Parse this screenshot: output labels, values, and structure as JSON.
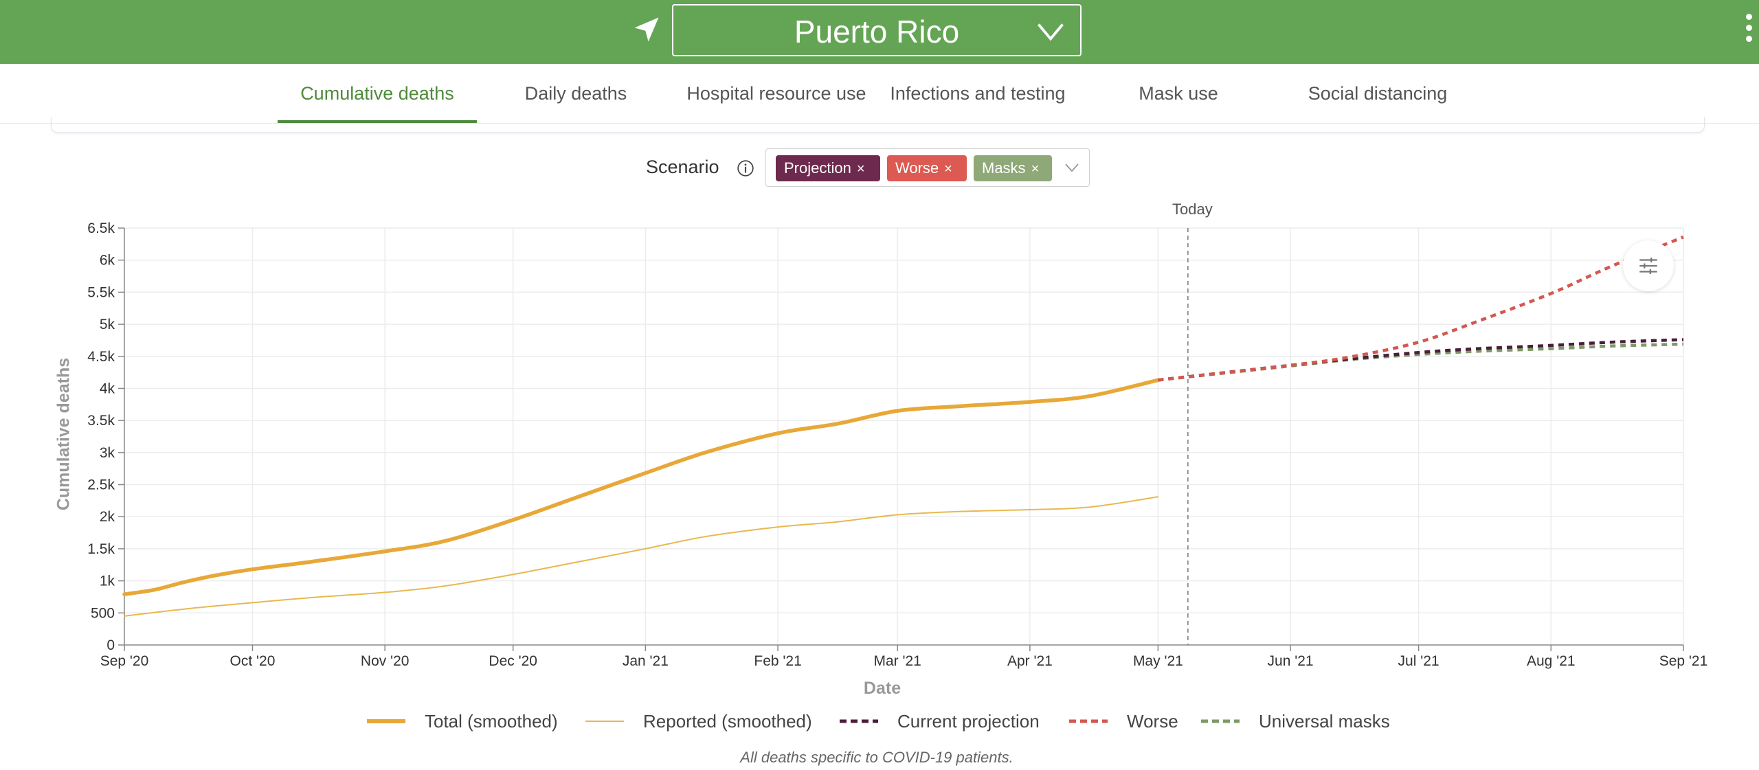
{
  "header": {
    "location_icon": "location-arrow-icon",
    "region": "Puerto Rico",
    "region_dropdown_icon": "chevron-down-icon",
    "menu_icon": "kebab-menu-icon",
    "colors": {
      "bar": "#64a555",
      "accent": "#4f8a3c"
    }
  },
  "tabs": [
    {
      "label": "Cumulative deaths",
      "active": true
    },
    {
      "label": "Daily deaths",
      "active": false
    },
    {
      "label": "Hospital resource use",
      "active": false
    },
    {
      "label": "Infections and testing",
      "active": false
    },
    {
      "label": "Mask use",
      "active": false
    },
    {
      "label": "Social distancing",
      "active": false
    }
  ],
  "scenario": {
    "label": "Scenario",
    "info_icon": "info-icon",
    "chips": [
      {
        "label": "Projection",
        "remove": "×",
        "color": "#6e2a4e"
      },
      {
        "label": "Worse",
        "remove": "×",
        "color": "#dc5a52"
      },
      {
        "label": "Masks",
        "remove": "×",
        "color": "#8fa877"
      }
    ],
    "dropdown_icon": "chevron-down-icon"
  },
  "chart_controls": {
    "filter_icon": "sliders-icon"
  },
  "chart_data": {
    "type": "line",
    "xlabel": "Date",
    "ylabel": "Cumulative deaths",
    "today_label": "Today",
    "today_date": "2021-05-08",
    "x_range": [
      "2020-09-01",
      "2021-09-01"
    ],
    "ylim": [
      0,
      6500
    ],
    "y_ticks": [
      {
        "value": 0,
        "label": "0"
      },
      {
        "value": 500,
        "label": "500"
      },
      {
        "value": 1000,
        "label": "1k"
      },
      {
        "value": 1500,
        "label": "1.5k"
      },
      {
        "value": 2000,
        "label": "2k"
      },
      {
        "value": 2500,
        "label": "2.5k"
      },
      {
        "value": 3000,
        "label": "3k"
      },
      {
        "value": 3500,
        "label": "3.5k"
      },
      {
        "value": 4000,
        "label": "4k"
      },
      {
        "value": 4500,
        "label": "4.5k"
      },
      {
        "value": 5000,
        "label": "5k"
      },
      {
        "value": 5500,
        "label": "5.5k"
      },
      {
        "value": 6000,
        "label": "6k"
      },
      {
        "value": 6500,
        "label": "6.5k"
      }
    ],
    "x_ticks": [
      {
        "date": "2020-09-01",
        "label": "Sep '20"
      },
      {
        "date": "2020-10-01",
        "label": "Oct '20"
      },
      {
        "date": "2020-11-01",
        "label": "Nov '20"
      },
      {
        "date": "2020-12-01",
        "label": "Dec '20"
      },
      {
        "date": "2021-01-01",
        "label": "Jan '21"
      },
      {
        "date": "2021-02-01",
        "label": "Feb '21"
      },
      {
        "date": "2021-03-01",
        "label": "Mar '21"
      },
      {
        "date": "2021-04-01",
        "label": "Apr '21"
      },
      {
        "date": "2021-05-01",
        "label": "May '21"
      },
      {
        "date": "2021-06-01",
        "label": "Jun '21"
      },
      {
        "date": "2021-07-01",
        "label": "Jul '21"
      },
      {
        "date": "2021-08-01",
        "label": "Aug '21"
      },
      {
        "date": "2021-09-01",
        "label": "Sep '21"
      }
    ],
    "grid": true,
    "legend_position": "bottom",
    "series": [
      {
        "name": "Total (smoothed)",
        "color": "#e8a838",
        "style": "solid-thick",
        "points": [
          [
            "2020-09-01",
            790
          ],
          [
            "2020-09-08",
            860
          ],
          [
            "2020-09-15",
            980
          ],
          [
            "2020-09-22",
            1080
          ],
          [
            "2020-10-01",
            1180
          ],
          [
            "2020-10-15",
            1300
          ],
          [
            "2020-11-01",
            1460
          ],
          [
            "2020-11-15",
            1620
          ],
          [
            "2020-12-01",
            1950
          ],
          [
            "2020-12-15",
            2280
          ],
          [
            "2021-01-01",
            2680
          ],
          [
            "2021-01-15",
            3000
          ],
          [
            "2021-02-01",
            3300
          ],
          [
            "2021-02-15",
            3450
          ],
          [
            "2021-03-01",
            3650
          ],
          [
            "2021-03-15",
            3720
          ],
          [
            "2021-04-01",
            3790
          ],
          [
            "2021-04-15",
            3880
          ],
          [
            "2021-05-01",
            4130
          ]
        ]
      },
      {
        "name": "Reported (smoothed)",
        "color": "#e8b850",
        "style": "solid-thin",
        "points": [
          [
            "2020-09-01",
            450
          ],
          [
            "2020-09-15",
            560
          ],
          [
            "2020-10-01",
            660
          ],
          [
            "2020-10-15",
            740
          ],
          [
            "2020-11-01",
            820
          ],
          [
            "2020-11-15",
            920
          ],
          [
            "2020-12-01",
            1100
          ],
          [
            "2020-12-15",
            1280
          ],
          [
            "2021-01-01",
            1500
          ],
          [
            "2021-01-15",
            1690
          ],
          [
            "2021-02-01",
            1840
          ],
          [
            "2021-02-15",
            1920
          ],
          [
            "2021-03-01",
            2030
          ],
          [
            "2021-03-15",
            2080
          ],
          [
            "2021-04-01",
            2110
          ],
          [
            "2021-04-15",
            2150
          ],
          [
            "2021-05-01",
            2310
          ]
        ]
      },
      {
        "name": "Current projection",
        "color": "#4a1e3a",
        "style": "dashed",
        "points": [
          [
            "2021-05-01",
            4130
          ],
          [
            "2021-06-01",
            4360
          ],
          [
            "2021-06-15",
            4460
          ],
          [
            "2021-07-01",
            4560
          ],
          [
            "2021-07-15",
            4620
          ],
          [
            "2021-08-01",
            4670
          ],
          [
            "2021-08-15",
            4720
          ],
          [
            "2021-09-01",
            4760
          ]
        ]
      },
      {
        "name": "Worse",
        "color": "#d25850",
        "style": "dashed",
        "points": [
          [
            "2021-05-01",
            4130
          ],
          [
            "2021-06-01",
            4360
          ],
          [
            "2021-06-15",
            4490
          ],
          [
            "2021-07-01",
            4720
          ],
          [
            "2021-07-15",
            5050
          ],
          [
            "2021-08-01",
            5480
          ],
          [
            "2021-08-15",
            5900
          ],
          [
            "2021-09-01",
            6360
          ]
        ]
      },
      {
        "name": "Universal masks",
        "color": "#7d9a66",
        "style": "dashed",
        "points": [
          [
            "2021-05-01",
            4130
          ],
          [
            "2021-06-01",
            4350
          ],
          [
            "2021-06-15",
            4450
          ],
          [
            "2021-07-01",
            4530
          ],
          [
            "2021-07-15",
            4580
          ],
          [
            "2021-08-01",
            4620
          ],
          [
            "2021-08-15",
            4660
          ],
          [
            "2021-09-01",
            4690
          ]
        ]
      }
    ]
  },
  "footnote": "All deaths specific to COVID-19 patients."
}
